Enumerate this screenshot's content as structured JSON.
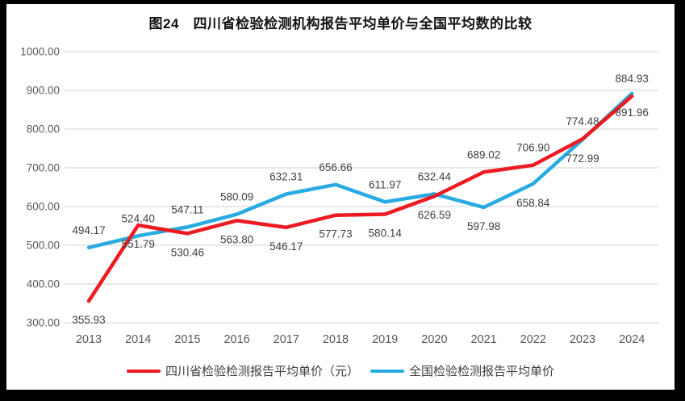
{
  "title": "图24　四川省检验检测机构报告平均单价与全国平均数的比较",
  "chart_data": {
    "type": "line",
    "title": "图24　四川省检验检测机构报告平均单价与全国平均数的比较",
    "categories": [
      "2013",
      "2014",
      "2015",
      "2016",
      "2017",
      "2018",
      "2019",
      "2020",
      "2021",
      "2022",
      "2023",
      "2024"
    ],
    "series": [
      {
        "name": "四川省检验检测报告平均单价（元）",
        "color": "#EC1B21",
        "values": [
          355.93,
          551.79,
          530.46,
          563.8,
          546.17,
          577.73,
          580.14,
          626.59,
          689.02,
          706.9,
          774.48,
          884.93
        ],
        "label_side": [
          "below",
          "below",
          "below",
          "below",
          "below",
          "below",
          "below",
          "below",
          "above",
          "above",
          "above",
          "above"
        ]
      },
      {
        "name": "全国检验检测报告平均单价",
        "color": "#29ABE2",
        "values": [
          494.17,
          524.4,
          547.11,
          580.09,
          632.31,
          656.66,
          611.97,
          632.44,
          597.98,
          658.84,
          772.99,
          891.96
        ],
        "label_side": [
          "above",
          "above",
          "above",
          "above",
          "above",
          "above",
          "above",
          "above",
          "below",
          "below",
          "below",
          "below"
        ]
      }
    ],
    "xlabel": "",
    "ylabel": "",
    "ylim": [
      300,
      1000
    ],
    "ytick_step": 100,
    "ytick_labels": [
      "300.00",
      "400.00",
      "500.00",
      "600.00",
      "700.00",
      "800.00",
      "900.00",
      "1000.00"
    ],
    "grid": true,
    "legend_position": "bottom",
    "colors": {
      "grid": "#D9D9D9",
      "axis_text": "#595959",
      "data_label_text": "#404040"
    }
  }
}
